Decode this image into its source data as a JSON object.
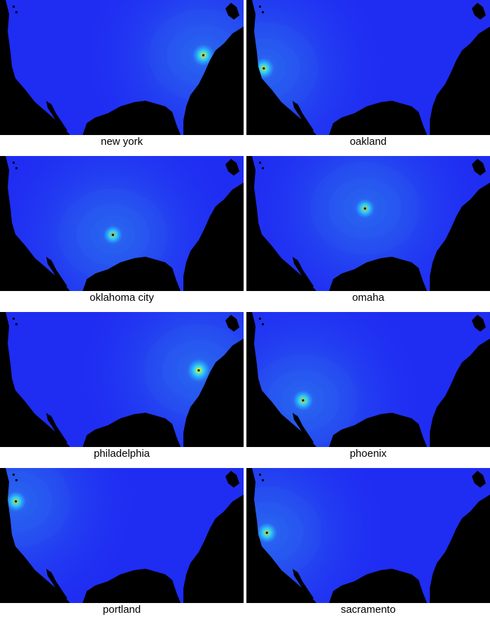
{
  "colors": {
    "land": "#000000",
    "background_low": "#1f2cf2",
    "mid": "#2a63f0",
    "high": "#2bd8ff",
    "peak": "#ffff00",
    "marker": "#000000"
  },
  "panels": [
    {
      "city": "new york",
      "hotspot": {
        "lon": -74.0,
        "lat": 40.7
      },
      "intensity": 0.85
    },
    {
      "city": "oakland",
      "hotspot": {
        "lon": -122.3,
        "lat": 37.8
      },
      "intensity": 0.75
    },
    {
      "city": "oklahoma city",
      "hotspot": {
        "lon": -97.5,
        "lat": 35.5
      },
      "intensity": 0.55
    },
    {
      "city": "omaha",
      "hotspot": {
        "lon": -96.0,
        "lat": 41.3
      },
      "intensity": 0.6
    },
    {
      "city": "philadelphia",
      "hotspot": {
        "lon": -75.2,
        "lat": 40.0
      },
      "intensity": 1.0
    },
    {
      "city": "phoenix",
      "hotspot": {
        "lon": -112.1,
        "lat": 33.4
      },
      "intensity": 0.7
    },
    {
      "city": "portland",
      "hotspot": {
        "lon": -122.7,
        "lat": 45.5
      },
      "intensity": 0.7
    },
    {
      "city": "sacramento",
      "hotspot": {
        "lon": -121.5,
        "lat": 38.6
      },
      "intensity": 0.7
    }
  ]
}
